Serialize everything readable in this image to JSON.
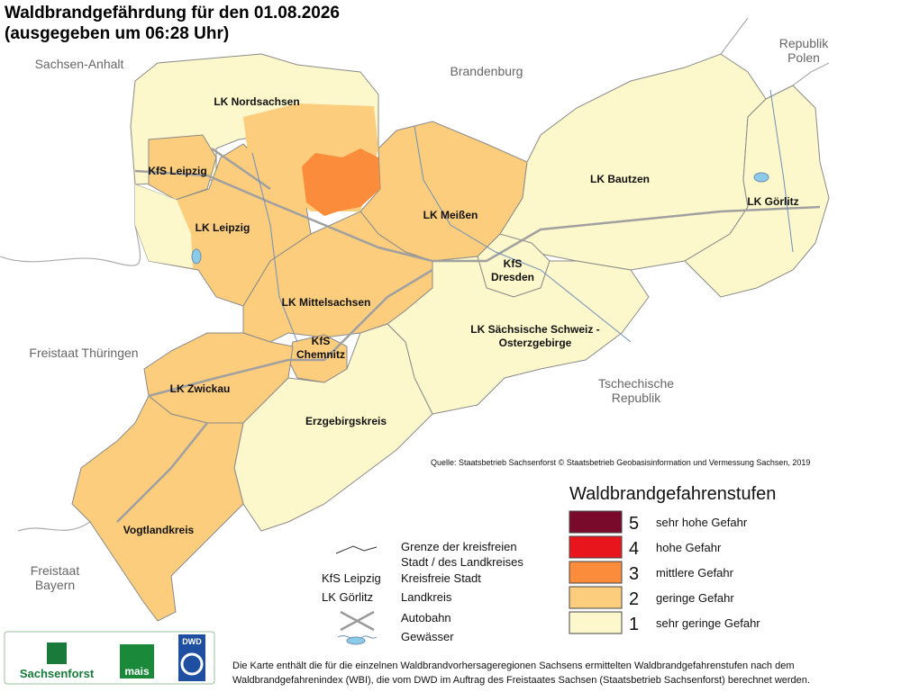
{
  "header": {
    "title": "Waldbrandgefährdung  für den  01.08.2026",
    "subtitle": "(ausgegeben um 06:28 Uhr)"
  },
  "neighbors": [
    {
      "lines": [
        "Sachsen-Anhalt"
      ]
    },
    {
      "lines": [
        "Brandenburg"
      ]
    },
    {
      "lines": [
        "Republik",
        "Polen"
      ]
    },
    {
      "lines": [
        "Freistaat Thüringen"
      ]
    },
    {
      "lines": [
        "Tschechische",
        "Republik"
      ]
    },
    {
      "lines": [
        "Freistaat",
        "Bayern"
      ]
    }
  ],
  "regions": [
    {
      "lines": [
        "LK Nordsachsen"
      ],
      "level": 1
    },
    {
      "lines": [
        "KfS Leipzig"
      ],
      "level": 2
    },
    {
      "lines": [
        "LK Leipzig"
      ],
      "level": 2
    },
    {
      "lines": [
        "LK Meißen"
      ],
      "level": 2
    },
    {
      "lines": [
        "LK Bautzen"
      ],
      "level": 1
    },
    {
      "lines": [
        "LK Görlitz"
      ],
      "level": 1
    },
    {
      "lines": [
        "KfS",
        "Dresden"
      ],
      "level": 1
    },
    {
      "lines": [
        "LK Mittelsachsen"
      ],
      "level": 2
    },
    {
      "lines": [
        "LK Sächsische Schweiz -",
        "Osterzgebirge"
      ],
      "level": 1
    },
    {
      "lines": [
        "KfS",
        "Chemnitz"
      ],
      "level": 2
    },
    {
      "lines": [
        "LK Zwickau"
      ],
      "level": 2
    },
    {
      "lines": [
        "Erzgebirgskreis"
      ],
      "level": 1
    },
    {
      "lines": [
        "Vogtlandkreis"
      ],
      "level": 2
    }
  ],
  "zones": [
    2,
    3,
    1
  ],
  "source": "Quelle: Staatsbetrieb Sachsenforst © Staatsbetrieb Geobasisinformation und Vermessung Sachsen, 2019",
  "legend": {
    "title": "Waldbrandgefahrenstufen",
    "levels": [
      {
        "level": 5,
        "label": "sehr hohe Gefahr",
        "color": "#7a0a2c"
      },
      {
        "level": 4,
        "label": "hohe Gefahr",
        "color": "#e8161c"
      },
      {
        "level": 3,
        "label": "mittlere Gefahr",
        "color": "#fa8c3c"
      },
      {
        "level": 2,
        "label": "geringe Gefahr",
        "color": "#fbcd7d"
      },
      {
        "level": 1,
        "label": "sehr geringe Gefahr",
        "color": "#fdf8cb"
      }
    ]
  },
  "symbols": {
    "border": [
      "Grenze der kreisfreien",
      "Stadt / des Landkreises"
    ],
    "city_example": "KfS Leipzig",
    "city": "Kreisfreie Stadt",
    "district_example": "LK Görlitz",
    "district": "Landkreis",
    "highway": "Autobahn",
    "water": "Gewässer"
  },
  "logos": [
    "Sachsenforst",
    "mais",
    "DWD"
  ],
  "footnote": [
    "Die Karte enthält die für die einzelnen Waldbrandvorhersageregionen Sachsens ermittelten Waldbrandgefahrenstufen nach dem",
    "Waldbrandgefahrenindex (WBI), die vom DWD im Auftrag des Freistaates Sachsen (Staatsbetrieb Sachsenforst) berechnet werden."
  ]
}
